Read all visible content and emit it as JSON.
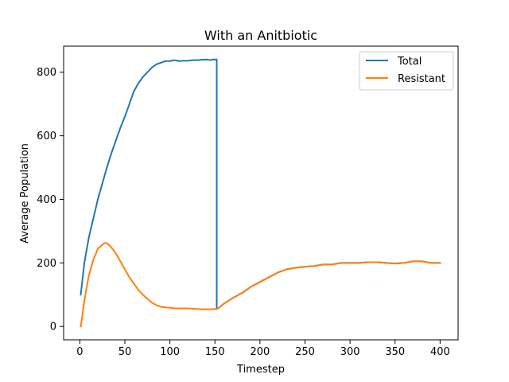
{
  "chart_data": {
    "type": "line",
    "title": "With an Anitbiotic",
    "xlabel": "Timestep",
    "ylabel": "Average Population",
    "xlim": [
      -18,
      420
    ],
    "ylim": [
      -42,
      882
    ],
    "xticks": [
      0,
      50,
      100,
      150,
      200,
      250,
      300,
      350,
      400
    ],
    "yticks": [
      0,
      200,
      400,
      600,
      800
    ],
    "grid": false,
    "legend_position": "top-right",
    "series": [
      {
        "name": "Total",
        "color": "#1f77b4",
        "points": [
          [
            1,
            100
          ],
          [
            5,
            200
          ],
          [
            10,
            280
          ],
          [
            15,
            340
          ],
          [
            20,
            400
          ],
          [
            25,
            450
          ],
          [
            30,
            500
          ],
          [
            35,
            545
          ],
          [
            40,
            585
          ],
          [
            45,
            625
          ],
          [
            50,
            660
          ],
          [
            55,
            700
          ],
          [
            60,
            740
          ],
          [
            65,
            765
          ],
          [
            70,
            785
          ],
          [
            75,
            800
          ],
          [
            80,
            815
          ],
          [
            85,
            825
          ],
          [
            90,
            830
          ],
          [
            95,
            835
          ],
          [
            100,
            835
          ],
          [
            105,
            838
          ],
          [
            110,
            835
          ],
          [
            115,
            836
          ],
          [
            120,
            836
          ],
          [
            125,
            838
          ],
          [
            130,
            838
          ],
          [
            135,
            839
          ],
          [
            140,
            840
          ],
          [
            145,
            838
          ],
          [
            148,
            840
          ],
          [
            150,
            840
          ],
          [
            152,
            840
          ],
          [
            152,
            55
          ],
          [
            155,
            60
          ],
          [
            160,
            72
          ],
          [
            170,
            90
          ],
          [
            180,
            105
          ],
          [
            190,
            125
          ],
          [
            200,
            140
          ],
          [
            210,
            155
          ],
          [
            220,
            170
          ],
          [
            230,
            180
          ],
          [
            240,
            185
          ],
          [
            250,
            188
          ],
          [
            260,
            190
          ],
          [
            270,
            195
          ],
          [
            280,
            195
          ],
          [
            290,
            200
          ],
          [
            300,
            200
          ],
          [
            310,
            200
          ],
          [
            320,
            202
          ],
          [
            330,
            202
          ],
          [
            340,
            200
          ],
          [
            350,
            198
          ],
          [
            360,
            200
          ],
          [
            370,
            205
          ],
          [
            380,
            205
          ],
          [
            390,
            200
          ],
          [
            400,
            200
          ]
        ]
      },
      {
        "name": "Resistant",
        "color": "#ff7f0e",
        "points": [
          [
            1,
            0
          ],
          [
            3,
            40
          ],
          [
            5,
            80
          ],
          [
            8,
            130
          ],
          [
            10,
            160
          ],
          [
            13,
            190
          ],
          [
            15,
            210
          ],
          [
            18,
            230
          ],
          [
            20,
            245
          ],
          [
            23,
            252
          ],
          [
            26,
            260
          ],
          [
            28,
            263
          ],
          [
            30,
            262
          ],
          [
            33,
            255
          ],
          [
            36,
            245
          ],
          [
            40,
            230
          ],
          [
            45,
            205
          ],
          [
            50,
            180
          ],
          [
            55,
            155
          ],
          [
            60,
            135
          ],
          [
            65,
            115
          ],
          [
            70,
            100
          ],
          [
            75,
            87
          ],
          [
            80,
            75
          ],
          [
            85,
            67
          ],
          [
            90,
            62
          ],
          [
            95,
            60
          ],
          [
            100,
            59
          ],
          [
            105,
            57
          ],
          [
            110,
            57
          ],
          [
            115,
            57
          ],
          [
            120,
            57
          ],
          [
            125,
            56
          ],
          [
            130,
            55
          ],
          [
            135,
            54
          ],
          [
            140,
            54
          ],
          [
            145,
            54
          ],
          [
            150,
            55
          ],
          [
            152,
            55
          ],
          [
            155,
            60
          ],
          [
            160,
            72
          ],
          [
            170,
            90
          ],
          [
            180,
            105
          ],
          [
            190,
            125
          ],
          [
            200,
            140
          ],
          [
            210,
            155
          ],
          [
            220,
            170
          ],
          [
            230,
            180
          ],
          [
            240,
            185
          ],
          [
            250,
            188
          ],
          [
            260,
            190
          ],
          [
            270,
            195
          ],
          [
            280,
            195
          ],
          [
            290,
            200
          ],
          [
            300,
            200
          ],
          [
            310,
            200
          ],
          [
            320,
            202
          ],
          [
            330,
            202
          ],
          [
            340,
            200
          ],
          [
            350,
            198
          ],
          [
            360,
            200
          ],
          [
            370,
            205
          ],
          [
            380,
            205
          ],
          [
            390,
            200
          ],
          [
            400,
            200
          ]
        ]
      }
    ]
  }
}
